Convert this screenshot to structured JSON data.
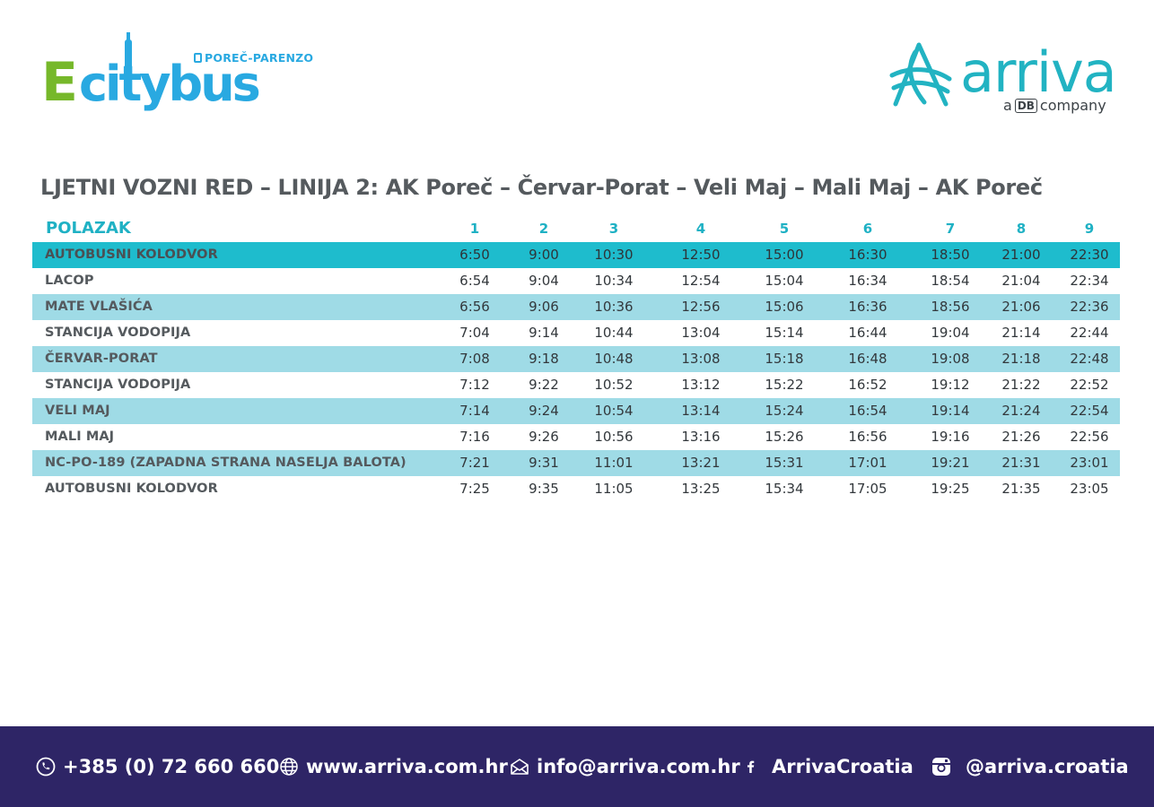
{
  "header": {
    "citybus_logo": {
      "letter": "E",
      "word": "citybus",
      "region": "POREČ-PARENZO"
    },
    "arriva_logo": {
      "word": "arriva",
      "tagline_before": "a",
      "tagline_badge": "DB",
      "tagline_after": "company"
    }
  },
  "title": "LJETNI VOZNI RED – LINIJA 2: AK Poreč – Červar-Porat – Veli Maj – Mali Maj – AK Poreč",
  "timetable": {
    "header_label": "POLAZAK",
    "departures": [
      "1",
      "2",
      "3",
      "4",
      "5",
      "6",
      "7",
      "8",
      "9"
    ],
    "rows": [
      {
        "stop": "AUTOBUSNI KOLODVOR",
        "times": [
          "6:50",
          "9:00",
          "10:30",
          "12:50",
          "15:00",
          "16:30",
          "18:50",
          "21:00",
          "22:30"
        ]
      },
      {
        "stop": "LACOP",
        "times": [
          "6:54",
          "9:04",
          "10:34",
          "12:54",
          "15:04",
          "16:34",
          "18:54",
          "21:04",
          "22:34"
        ]
      },
      {
        "stop": "MATE VLAŠIĆA",
        "times": [
          "6:56",
          "9:06",
          "10:36",
          "12:56",
          "15:06",
          "16:36",
          "18:56",
          "21:06",
          "22:36"
        ]
      },
      {
        "stop": "STANCIJA VODOPIJA",
        "times": [
          "7:04",
          "9:14",
          "10:44",
          "13:04",
          "15:14",
          "16:44",
          "19:04",
          "21:14",
          "22:44"
        ]
      },
      {
        "stop": "ČERVAR-PORAT",
        "times": [
          "7:08",
          "9:18",
          "10:48",
          "13:08",
          "15:18",
          "16:48",
          "19:08",
          "21:18",
          "22:48"
        ]
      },
      {
        "stop": "STANCIJA VODOPIJA",
        "times": [
          "7:12",
          "9:22",
          "10:52",
          "13:12",
          "15:22",
          "16:52",
          "19:12",
          "21:22",
          "22:52"
        ]
      },
      {
        "stop": "VELI MAJ",
        "times": [
          "7:14",
          "9:24",
          "10:54",
          "13:14",
          "15:24",
          "16:54",
          "19:14",
          "21:24",
          "22:54"
        ]
      },
      {
        "stop": "MALI MAJ",
        "times": [
          "7:16",
          "9:26",
          "10:56",
          "13:16",
          "15:26",
          "16:56",
          "19:16",
          "21:26",
          "22:56"
        ]
      },
      {
        "stop": "NC-PO-189 (ZAPADNA STRANA NASELJA BALOTA)",
        "times": [
          "7:21",
          "9:31",
          "11:01",
          "13:21",
          "15:31",
          "17:01",
          "19:21",
          "21:31",
          "23:01"
        ]
      },
      {
        "stop": "AUTOBUSNI KOLODVOR",
        "times": [
          "7:25",
          "9:35",
          "11:05",
          "13:25",
          "15:34",
          "17:05",
          "19:25",
          "21:35",
          "23:05"
        ]
      }
    ]
  },
  "footer": {
    "phone": {
      "icon": "phone-icon",
      "text": "+385 (0) 72 660 660"
    },
    "web": {
      "icon": "globe-icon",
      "text": "www.arriva.com.hr"
    },
    "email": {
      "icon": "mail-icon",
      "text": "info@arriva.com.hr"
    },
    "facebook": {
      "icon": "facebook-icon",
      "text": "ArrivaCroatia"
    },
    "instagram": {
      "icon": "instagram-icon",
      "text": "@arriva.croatia"
    }
  },
  "colors": {
    "header_row": "#1ebccd",
    "alt_row": "#9fdbe6",
    "accent_teal": "#1fb1c4",
    "citybus_green": "#76b82a",
    "citybus_blue": "#29a9e1",
    "footer_bg": "#2e2566",
    "text": "#555a5e"
  }
}
